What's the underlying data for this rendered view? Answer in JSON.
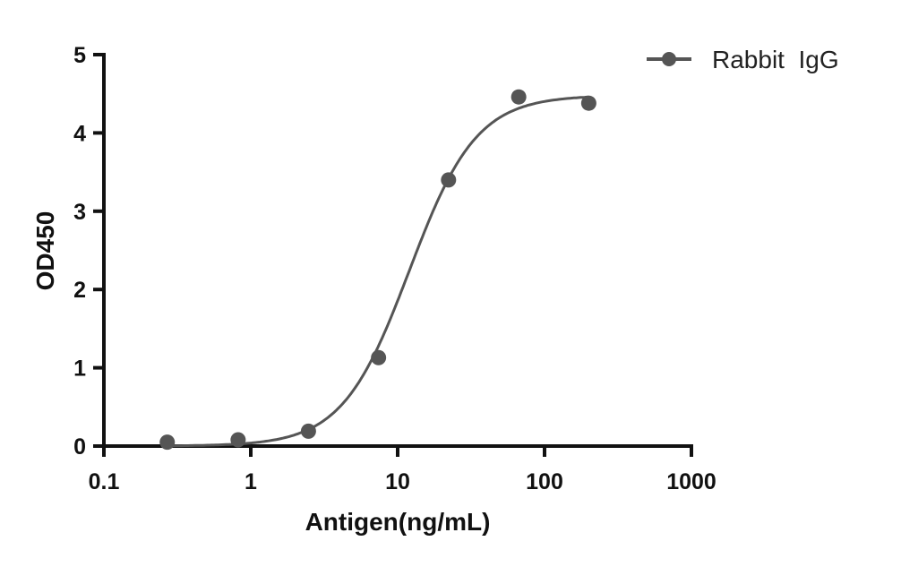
{
  "chart_data": {
    "type": "scatter",
    "title": "",
    "xlabel": "Antigen(ng/mL)",
    "ylabel": "OD450",
    "x_scale": "log",
    "xlim": [
      0.1,
      1000
    ],
    "ylim": [
      0,
      5
    ],
    "x_ticks": [
      "0.1",
      "1",
      "10",
      "100",
      "1000"
    ],
    "x_tick_values": [
      0.1,
      1,
      10,
      100,
      1000
    ],
    "y_ticks": [
      "0",
      "1",
      "2",
      "3",
      "4",
      "5"
    ],
    "y_tick_values": [
      0,
      1,
      2,
      3,
      4,
      5
    ],
    "grid": false,
    "legend_position": "top-right",
    "series": [
      {
        "name": "Rabbit  IgG",
        "color": "#555555",
        "marker": "circle",
        "fit": "sigmoidal curve",
        "x": [
          0.27,
          0.82,
          2.47,
          7.41,
          22.2,
          66.7,
          200
        ],
        "y": [
          0.05,
          0.08,
          0.19,
          1.13,
          3.4,
          4.46,
          4.38
        ]
      }
    ]
  }
}
